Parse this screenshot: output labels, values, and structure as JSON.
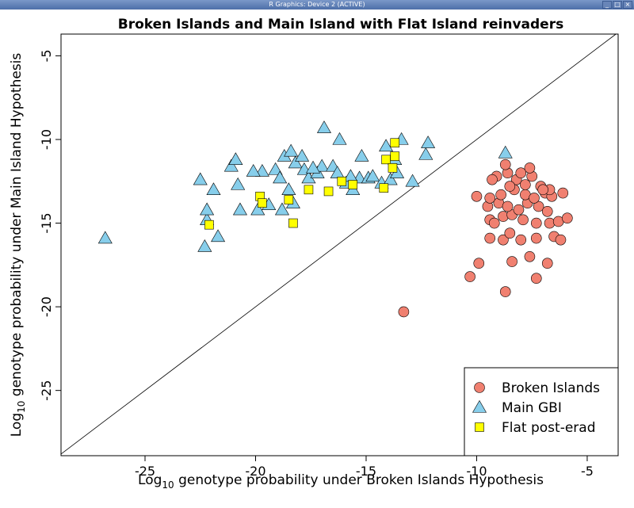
{
  "window": {
    "title": "R Graphics: Device 2 (ACTIVE)",
    "controls": [
      "_",
      "□",
      "×"
    ]
  },
  "chart_data": {
    "type": "scatter",
    "title": "Broken Islands and Main Island with Flat Island reinvaders",
    "xlabel_prefix": "Log",
    "xlabel_sub": "10",
    "xlabel_rest": " genotype probability under Broken Islands Hypothesis",
    "ylabel_prefix": "Log",
    "ylabel_sub": "10",
    "ylabel_rest": " genotype probability under Main Island Hypothesis",
    "xlim": [
      -28.8,
      -3.6
    ],
    "ylim": [
      -28.9,
      -3.7
    ],
    "xticks": [
      -25,
      -20,
      -15,
      -10,
      -5
    ],
    "yticks": [
      -5,
      -10,
      -15,
      -20,
      -25
    ],
    "xtick_labels": [
      "-25",
      "-20",
      "-15",
      "-10",
      "-5"
    ],
    "ytick_labels": [
      "-5",
      "-10",
      "-15",
      "-20",
      "-25"
    ],
    "reference_line": "y = x",
    "grid": false,
    "legend_position": "bottom-right",
    "series": [
      {
        "name": "Broken Islands",
        "marker": "circle",
        "color": "#f08070",
        "points": [
          [
            -13.3,
            -20.3
          ],
          [
            -10.3,
            -18.2
          ],
          [
            -9.9,
            -17.4
          ],
          [
            -8.7,
            -19.1
          ],
          [
            -8.4,
            -17.3
          ],
          [
            -7.6,
            -17.0
          ],
          [
            -7.3,
            -18.3
          ],
          [
            -6.8,
            -17.4
          ],
          [
            -9.4,
            -15.9
          ],
          [
            -8.8,
            -16.0
          ],
          [
            -8.5,
            -15.6
          ],
          [
            -8.0,
            -16.0
          ],
          [
            -7.3,
            -15.9
          ],
          [
            -6.5,
            -15.8
          ],
          [
            -6.2,
            -16.0
          ],
          [
            -9.4,
            -14.8
          ],
          [
            -9.2,
            -15.0
          ],
          [
            -8.8,
            -14.6
          ],
          [
            -8.4,
            -14.5
          ],
          [
            -7.9,
            -14.8
          ],
          [
            -7.3,
            -15.0
          ],
          [
            -6.7,
            -15.0
          ],
          [
            -6.3,
            -14.9
          ],
          [
            -5.9,
            -14.7
          ],
          [
            -9.5,
            -14.0
          ],
          [
            -9.0,
            -13.8
          ],
          [
            -8.6,
            -14.0
          ],
          [
            -8.1,
            -14.2
          ],
          [
            -7.7,
            -13.8
          ],
          [
            -7.2,
            -14.0
          ],
          [
            -6.8,
            -14.3
          ],
          [
            -10.0,
            -13.4
          ],
          [
            -9.4,
            -13.5
          ],
          [
            -8.9,
            -13.3
          ],
          [
            -8.3,
            -13.0
          ],
          [
            -7.8,
            -13.3
          ],
          [
            -7.4,
            -13.5
          ],
          [
            -6.9,
            -13.2
          ],
          [
            -6.6,
            -13.4
          ],
          [
            -6.1,
            -13.2
          ],
          [
            -9.1,
            -12.2
          ],
          [
            -8.6,
            -12.0
          ],
          [
            -8.2,
            -12.4
          ],
          [
            -7.8,
            -12.7
          ],
          [
            -7.5,
            -12.2
          ],
          [
            -7.1,
            -12.8
          ],
          [
            -6.7,
            -13.0
          ],
          [
            -8.7,
            -11.5
          ],
          [
            -8.0,
            -12.0
          ],
          [
            -7.6,
            -11.7
          ],
          [
            -9.3,
            -12.4
          ],
          [
            -8.5,
            -12.8
          ],
          [
            -7.0,
            -13.0
          ]
        ]
      },
      {
        "name": "Main GBI",
        "marker": "triangle",
        "color": "#87ceeb",
        "points": [
          [
            -26.8,
            -15.9
          ],
          [
            -22.3,
            -16.4
          ],
          [
            -21.7,
            -15.8
          ],
          [
            -22.2,
            -14.8
          ],
          [
            -22.2,
            -14.2
          ],
          [
            -22.5,
            -12.4
          ],
          [
            -21.9,
            -13.0
          ],
          [
            -21.1,
            -11.6
          ],
          [
            -20.9,
            -11.2
          ],
          [
            -20.8,
            -12.7
          ],
          [
            -20.7,
            -14.2
          ],
          [
            -19.9,
            -14.2
          ],
          [
            -19.7,
            -11.9
          ],
          [
            -19.4,
            -13.9
          ],
          [
            -19.1,
            -11.8
          ],
          [
            -18.9,
            -12.3
          ],
          [
            -18.7,
            -11.0
          ],
          [
            -18.8,
            -14.2
          ],
          [
            -18.5,
            -13.0
          ],
          [
            -18.4,
            -10.7
          ],
          [
            -18.2,
            -11.4
          ],
          [
            -18.3,
            -13.8
          ],
          [
            -17.9,
            -11.0
          ],
          [
            -17.8,
            -11.8
          ],
          [
            -17.6,
            -12.3
          ],
          [
            -17.2,
            -12.0
          ],
          [
            -17.0,
            -11.6
          ],
          [
            -16.9,
            -9.3
          ],
          [
            -16.5,
            -11.6
          ],
          [
            -16.3,
            -12.0
          ],
          [
            -16.2,
            -10.0
          ],
          [
            -15.9,
            -12.6
          ],
          [
            -15.6,
            -13.0
          ],
          [
            -15.3,
            -12.3
          ],
          [
            -15.2,
            -11.0
          ],
          [
            -14.9,
            -12.3
          ],
          [
            -14.7,
            -12.2
          ],
          [
            -14.3,
            -12.6
          ],
          [
            -14.1,
            -10.4
          ],
          [
            -13.9,
            -12.4
          ],
          [
            -13.6,
            -12.0
          ],
          [
            -13.4,
            -10.0
          ],
          [
            -12.9,
            -12.5
          ],
          [
            -12.3,
            -10.9
          ],
          [
            -12.2,
            -10.2
          ],
          [
            -8.7,
            -10.8
          ],
          [
            -20.1,
            -11.9
          ],
          [
            -17.4,
            -11.7
          ],
          [
            -15.7,
            -12.2
          ],
          [
            -13.7,
            -11.2
          ]
        ]
      },
      {
        "name": "Flat post-erad",
        "marker": "square",
        "color": "#ffff00",
        "points": [
          [
            -22.1,
            -15.1
          ],
          [
            -19.8,
            -13.4
          ],
          [
            -19.7,
            -13.8
          ],
          [
            -18.5,
            -13.6
          ],
          [
            -18.3,
            -15.0
          ],
          [
            -17.6,
            -13.0
          ],
          [
            -16.7,
            -13.1
          ],
          [
            -16.1,
            -12.5
          ],
          [
            -15.6,
            -12.7
          ],
          [
            -14.2,
            -12.9
          ],
          [
            -14.1,
            -11.2
          ],
          [
            -13.7,
            -11.0
          ],
          [
            -13.8,
            -11.7
          ],
          [
            -13.7,
            -10.2
          ]
        ]
      }
    ]
  }
}
